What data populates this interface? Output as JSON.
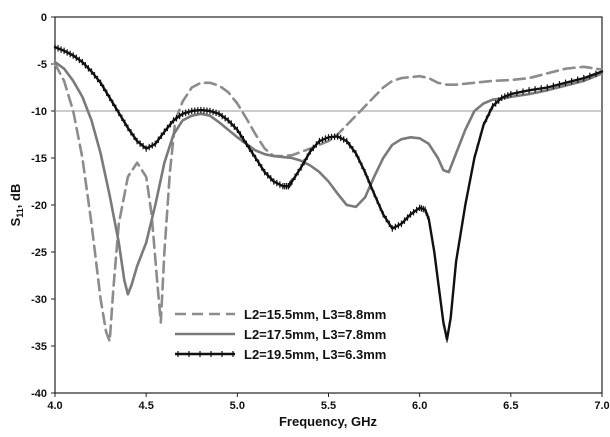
{
  "chart_data": {
    "type": "line",
    "title": "",
    "xlabel": "Frequency, GHz",
    "ylabel": "S11, dB",
    "ylabel_main": "S",
    "ylabel_sub": "11",
    "ylabel_suffix": ", dB",
    "xlim": [
      4.0,
      7.0
    ],
    "ylim": [
      -40,
      0
    ],
    "x_ticks": [
      "4.0",
      "4.5",
      "5.0",
      "5.5",
      "6.0",
      "6.5",
      "7.0"
    ],
    "y_ticks": [
      "0",
      "-5",
      "-10",
      "-15",
      "-20",
      "-25",
      "-30",
      "-35",
      "-40"
    ],
    "reference_line": -10,
    "grid": false,
    "legend_position": "bottom-left",
    "series": [
      {
        "name": "L2=15.5mm, L3=8.8mm",
        "style": "dashed",
        "color": "#8c8c8c",
        "x": [
          4.0,
          4.05,
          4.1,
          4.15,
          4.2,
          4.25,
          4.28,
          4.3,
          4.32,
          4.35,
          4.4,
          4.45,
          4.5,
          4.53,
          4.56,
          4.58,
          4.6,
          4.63,
          4.66,
          4.7,
          4.75,
          4.8,
          4.85,
          4.9,
          4.95,
          5.0,
          5.05,
          5.1,
          5.15,
          5.2,
          5.25,
          5.3,
          5.4,
          5.5,
          5.55,
          5.6,
          5.65,
          5.7,
          5.75,
          5.8,
          5.85,
          5.9,
          6.0,
          6.05,
          6.1,
          6.15,
          6.2,
          6.3,
          6.4,
          6.5,
          6.6,
          6.7,
          6.8,
          6.9,
          7.0
        ],
        "y": [
          -5.0,
          -6.8,
          -10.0,
          -15.0,
          -22.0,
          -30.0,
          -33.5,
          -34.5,
          -29.0,
          -22.0,
          -17.0,
          -15.5,
          -17.0,
          -21.0,
          -28.0,
          -32.5,
          -25.0,
          -16.5,
          -11.0,
          -9.0,
          -7.5,
          -7.0,
          -7.0,
          -7.3,
          -8.0,
          -9.2,
          -10.8,
          -12.5,
          -14.0,
          -14.8,
          -14.8,
          -14.7,
          -14.0,
          -13.2,
          -12.5,
          -11.5,
          -10.5,
          -9.5,
          -8.5,
          -7.5,
          -6.8,
          -6.5,
          -6.3,
          -6.5,
          -7.0,
          -7.2,
          -7.2,
          -7.0,
          -6.8,
          -6.7,
          -6.5,
          -6.0,
          -5.5,
          -5.3,
          -5.6
        ]
      },
      {
        "name": "L2=17.5mm, L3=7.8mm",
        "style": "solid",
        "color": "#7a7a7a",
        "x": [
          4.0,
          4.05,
          4.1,
          4.15,
          4.2,
          4.25,
          4.3,
          4.35,
          4.38,
          4.4,
          4.42,
          4.45,
          4.5,
          4.55,
          4.6,
          4.65,
          4.7,
          4.75,
          4.8,
          4.85,
          4.9,
          4.95,
          5.0,
          5.05,
          5.1,
          5.15,
          5.2,
          5.25,
          5.3,
          5.35,
          5.4,
          5.45,
          5.5,
          5.55,
          5.6,
          5.65,
          5.7,
          5.75,
          5.8,
          5.85,
          5.9,
          5.95,
          6.0,
          6.05,
          6.1,
          6.13,
          6.16,
          6.2,
          6.25,
          6.3,
          6.35,
          6.4,
          6.5,
          6.6,
          6.7,
          6.8,
          6.9,
          7.0
        ],
        "y": [
          -4.8,
          -5.5,
          -6.8,
          -8.5,
          -11.0,
          -14.5,
          -19.0,
          -24.0,
          -28.0,
          -29.5,
          -28.5,
          -26.5,
          -24.0,
          -20.0,
          -15.5,
          -12.5,
          -11.0,
          -10.5,
          -10.3,
          -10.5,
          -11.2,
          -12.0,
          -12.8,
          -13.5,
          -14.2,
          -14.6,
          -14.8,
          -14.9,
          -15.0,
          -15.3,
          -15.8,
          -16.5,
          -17.5,
          -18.8,
          -20.0,
          -20.2,
          -19.2,
          -17.0,
          -15.0,
          -13.6,
          -13.0,
          -12.8,
          -12.9,
          -13.5,
          -15.0,
          -16.3,
          -16.5,
          -14.5,
          -12.0,
          -10.0,
          -9.2,
          -8.8,
          -8.5,
          -8.2,
          -7.8,
          -7.3,
          -6.8,
          -6.0
        ]
      },
      {
        "name": "L2=19.5mm, L3=6.3mm",
        "style": "solid-markers",
        "color": "#111111",
        "x": [
          4.0,
          4.05,
          4.1,
          4.15,
          4.2,
          4.25,
          4.3,
          4.35,
          4.4,
          4.45,
          4.5,
          4.55,
          4.6,
          4.65,
          4.7,
          4.75,
          4.8,
          4.85,
          4.9,
          4.95,
          5.0,
          5.05,
          5.1,
          5.15,
          5.2,
          5.25,
          5.28,
          5.3,
          5.35,
          5.4,
          5.45,
          5.5,
          5.55,
          5.6,
          5.65,
          5.7,
          5.75,
          5.8,
          5.85,
          5.9,
          5.95,
          6.0,
          6.03,
          6.05,
          6.08,
          6.1,
          6.13,
          6.15,
          6.17,
          6.2,
          6.25,
          6.3,
          6.35,
          6.4,
          6.45,
          6.5,
          6.6,
          6.7,
          6.8,
          6.9,
          7.0
        ],
        "y": [
          -3.2,
          -3.6,
          -4.1,
          -4.8,
          -5.8,
          -7.0,
          -8.6,
          -10.2,
          -11.8,
          -13.2,
          -14.0,
          -13.5,
          -12.2,
          -11.0,
          -10.3,
          -10.0,
          -9.9,
          -10.0,
          -10.3,
          -11.0,
          -12.0,
          -13.5,
          -15.0,
          -16.5,
          -17.5,
          -18.0,
          -18.0,
          -17.5,
          -16.0,
          -14.3,
          -13.2,
          -12.8,
          -12.7,
          -13.2,
          -14.5,
          -16.5,
          -18.8,
          -21.0,
          -22.5,
          -22.0,
          -21.0,
          -20.3,
          -20.5,
          -21.5,
          -25.0,
          -28.0,
          -32.5,
          -34.3,
          -32.0,
          -26.0,
          -20.0,
          -15.0,
          -11.5,
          -9.5,
          -8.6,
          -8.2,
          -7.8,
          -7.5,
          -7.0,
          -6.5,
          -5.8
        ]
      }
    ]
  }
}
